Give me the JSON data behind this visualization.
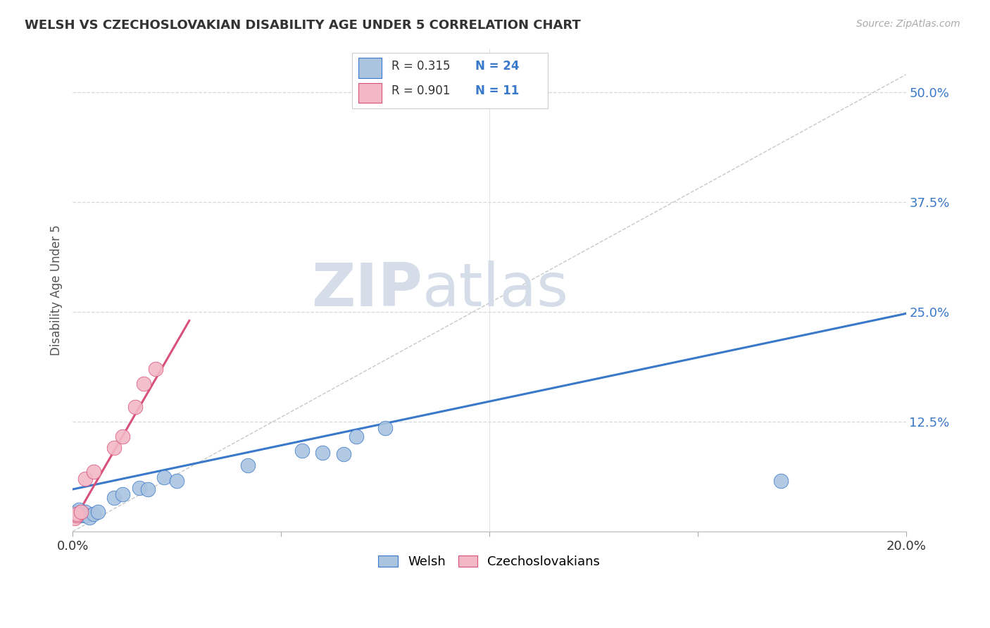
{
  "title": "WELSH VS CZECHOSLOVAKIAN DISABILITY AGE UNDER 5 CORRELATION CHART",
  "source": "Source: ZipAtlas.com",
  "ylabel": "Disability Age Under 5",
  "xlim": [
    0.0,
    0.2
  ],
  "ylim": [
    0.0,
    0.55
  ],
  "ytick_vals": [
    0.0,
    0.125,
    0.25,
    0.375,
    0.5
  ],
  "ytick_labels": [
    "",
    "12.5%",
    "25.0%",
    "37.5%",
    "50.0%"
  ],
  "xtick_vals": [
    0.0,
    0.05,
    0.1,
    0.15,
    0.2
  ],
  "xtick_labels": [
    "0.0%",
    "",
    "",
    "",
    "20.0%"
  ],
  "welsh_R": 0.315,
  "welsh_N": 24,
  "czech_R": 0.901,
  "czech_N": 11,
  "welsh_color": "#aac4e0",
  "welsh_line_color": "#3a78c9",
  "czech_color": "#f2b8c6",
  "czech_line_color": "#d9507a",
  "background_color": "#ffffff",
  "grid_color": "#d8d8d8",
  "welsh_line_x0": 0.0,
  "welsh_line_y0": 0.048,
  "welsh_line_x1": 0.2,
  "welsh_line_y1": 0.248,
  "czech_line_x0": 0.0,
  "czech_line_y0": 0.01,
  "czech_line_x1": 0.028,
  "czech_line_y1": 0.24,
  "welsh_points": [
    [
      0.0005,
      0.02
    ],
    [
      0.001,
      0.022
    ],
    [
      0.001,
      0.018
    ],
    [
      0.0015,
      0.025
    ],
    [
      0.002,
      0.02
    ],
    [
      0.002,
      0.018
    ],
    [
      0.003,
      0.022
    ],
    [
      0.003,
      0.018
    ],
    [
      0.004,
      0.016
    ],
    [
      0.005,
      0.02
    ],
    [
      0.006,
      0.022
    ],
    [
      0.01,
      0.038
    ],
    [
      0.012,
      0.042
    ],
    [
      0.016,
      0.05
    ],
    [
      0.018,
      0.048
    ],
    [
      0.022,
      0.062
    ],
    [
      0.025,
      0.058
    ],
    [
      0.042,
      0.075
    ],
    [
      0.055,
      0.092
    ],
    [
      0.06,
      0.09
    ],
    [
      0.065,
      0.088
    ],
    [
      0.068,
      0.108
    ],
    [
      0.075,
      0.118
    ],
    [
      0.17,
      0.058
    ]
  ],
  "czech_points": [
    [
      0.0005,
      0.015
    ],
    [
      0.001,
      0.018
    ],
    [
      0.001,
      0.02
    ],
    [
      0.002,
      0.022
    ],
    [
      0.003,
      0.06
    ],
    [
      0.005,
      0.068
    ],
    [
      0.01,
      0.095
    ],
    [
      0.012,
      0.108
    ],
    [
      0.015,
      0.142
    ],
    [
      0.017,
      0.168
    ],
    [
      0.02,
      0.185
    ]
  ]
}
